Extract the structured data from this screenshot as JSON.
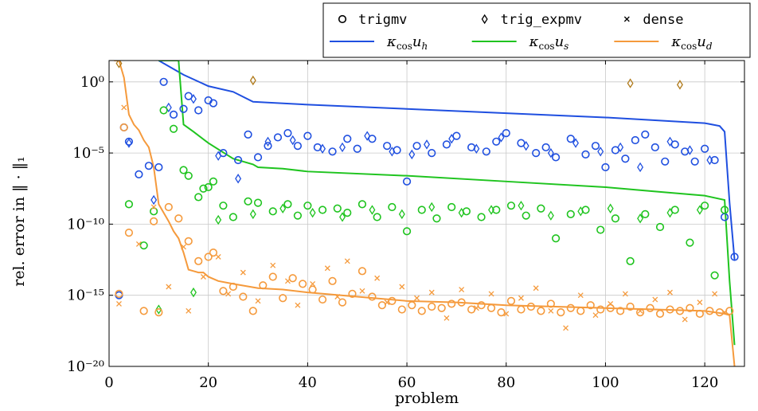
{
  "chart_data": {
    "type": "scatter",
    "xlabel": "problem",
    "ylabel": "rel. error in ‖ · ‖₁",
    "xlim": [
      0,
      128
    ],
    "ylim_log10": [
      -20,
      1.5
    ],
    "y_scale": "log",
    "x_ticks": [
      0,
      20,
      40,
      60,
      80,
      100,
      120
    ],
    "y_ticks": [
      {
        "exp": 0,
        "label": "10⁰"
      },
      {
        "exp": -5,
        "label": "10⁻⁵"
      },
      {
        "exp": -10,
        "label": "10⁻¹⁰"
      },
      {
        "exp": -15,
        "label": "10⁻¹⁵"
      },
      {
        "exp": -20,
        "label": "10⁻²⁰"
      }
    ],
    "grid": true,
    "legend_position": "top-right, above plot",
    "colors": {
      "blue": "#1f4fe0",
      "green": "#1fc41f",
      "orange": "#f59a3c",
      "dark_orange": "#b07a1a"
    },
    "legend": {
      "markers": [
        {
          "name": "trigmv",
          "marker": "circle"
        },
        {
          "name": "trig_expmv",
          "marker": "diamond"
        },
        {
          "name": "dense",
          "marker": "x"
        }
      ],
      "lines": [
        {
          "name": "κcos uh",
          "sub": "h",
          "color": "#1f4fe0"
        },
        {
          "name": "κcos us",
          "sub": "s",
          "color": "#1fc41f"
        },
        {
          "name": "κcos ud",
          "sub": "d",
          "color": "#f59a3c"
        }
      ]
    },
    "series": [
      {
        "name": "κcos uh",
        "kind": "line",
        "color": "#1f4fe0",
        "x": [
          10,
          15,
          20,
          25,
          29,
          40,
          60,
          80,
          100,
          110,
          120,
          123,
          124,
          125,
          126
        ],
        "y_log10": [
          1.5,
          0.5,
          -0.3,
          -0.7,
          -1.4,
          -1.6,
          -1.9,
          -2.2,
          -2.5,
          -2.7,
          -2.9,
          -3.1,
          -3.5,
          -8.5,
          -12.5
        ]
      },
      {
        "name": "κcos us",
        "kind": "line",
        "color": "#1fc41f",
        "x": [
          10,
          14,
          15,
          17,
          20,
          25,
          29,
          30,
          35,
          40,
          60,
          80,
          100,
          110,
          120,
          124,
          125,
          126
        ],
        "y_log10": [
          1.5,
          1.5,
          -3.0,
          -3.5,
          -4.3,
          -5.4,
          -5.8,
          -6.0,
          -6.1,
          -6.3,
          -6.6,
          -7.0,
          -7.4,
          -7.7,
          -8.0,
          -8.3,
          -14.0,
          -18.5
        ]
      },
      {
        "name": "κcos ud",
        "kind": "line",
        "color": "#f59a3c",
        "x": [
          1,
          2,
          3,
          4,
          5,
          6,
          7,
          8,
          9,
          10,
          11,
          12,
          13,
          14,
          15,
          16,
          17,
          18,
          19,
          20,
          22,
          25,
          30,
          35,
          40,
          50,
          60,
          70,
          80,
          90,
          100,
          110,
          120,
          124,
          125,
          126
        ],
        "y_log10": [
          1.5,
          1.5,
          0.3,
          -2.3,
          -3.0,
          -3.4,
          -4.1,
          -4.6,
          -6.0,
          -8.6,
          -9.2,
          -9.8,
          -10.5,
          -11.0,
          -12.0,
          -13.2,
          -13.3,
          -13.4,
          -13.4,
          -13.7,
          -14.0,
          -14.2,
          -14.5,
          -14.6,
          -14.8,
          -15.1,
          -15.4,
          -15.5,
          -15.7,
          -15.8,
          -15.9,
          -16.0,
          -16.1,
          -16.3,
          -16.4,
          -20.0
        ]
      },
      {
        "name": "trigmv",
        "kind": "scatter",
        "marker": "circle",
        "color": "#1f4fe0",
        "x": [
          2,
          3,
          4,
          6,
          8,
          10,
          11,
          13,
          15,
          16,
          18,
          20,
          21,
          23,
          26,
          28,
          30,
          32,
          34,
          36,
          38,
          40,
          42,
          45,
          48,
          50,
          53,
          56,
          58,
          60,
          62,
          65,
          68,
          70,
          73,
          76,
          78,
          80,
          83,
          86,
          88,
          90,
          93,
          96,
          98,
          100,
          102,
          104,
          106,
          108,
          110,
          112,
          114,
          116,
          118,
          120,
          122,
          124,
          126
        ],
        "y_log10": [
          -15.0,
          -3.2,
          -4.2,
          -6.5,
          -5.9,
          -6.0,
          0.0,
          -2.3,
          -1.9,
          -1.0,
          -2.0,
          -1.3,
          -1.5,
          -5.0,
          -5.5,
          -3.7,
          -5.3,
          -4.5,
          -3.9,
          -3.6,
          -4.5,
          -3.8,
          -4.6,
          -4.9,
          -4.0,
          -4.7,
          -4.0,
          -4.5,
          -4.8,
          -7.0,
          -4.5,
          -5.0,
          -4.4,
          -3.8,
          -4.6,
          -4.9,
          -4.2,
          -3.6,
          -4.3,
          -5.0,
          -4.6,
          -5.3,
          -4.0,
          -5.1,
          -4.5,
          -6.0,
          -4.8,
          -5.4,
          -4.1,
          -3.7,
          -4.6,
          -5.6,
          -4.4,
          -4.9,
          -5.6,
          -4.7,
          -5.5,
          -9.5,
          -12.3
        ]
      },
      {
        "name": "trig_expmv",
        "kind": "scatter",
        "marker": "diamond",
        "color": "#1f4fe0",
        "x": [
          4,
          9,
          12,
          17,
          22,
          26,
          32,
          37,
          43,
          47,
          52,
          57,
          61,
          64,
          69,
          74,
          79,
          84,
          89,
          94,
          99,
          103,
          107,
          113,
          117,
          121
        ],
        "y_log10": [
          -4.3,
          -8.3,
          -1.8,
          -1.2,
          -5.2,
          -6.8,
          -4.2,
          -4.1,
          -4.7,
          -4.6,
          -3.8,
          -4.9,
          -5.1,
          -4.4,
          -4.0,
          -4.7,
          -3.9,
          -4.5,
          -5.0,
          -4.3,
          -4.9,
          -4.6,
          -6.0,
          -4.2,
          -4.8,
          -5.5
        ]
      },
      {
        "name": "trigmv green",
        "kind": "scatter",
        "marker": "circle",
        "color": "#1fc41f",
        "x": [
          4,
          7,
          9,
          11,
          13,
          15,
          16,
          18,
          19,
          20,
          21,
          23,
          25,
          28,
          30,
          33,
          36,
          38,
          40,
          43,
          46,
          48,
          51,
          54,
          57,
          60,
          63,
          66,
          69,
          72,
          75,
          78,
          81,
          84,
          87,
          90,
          93,
          96,
          99,
          102,
          105,
          108,
          111,
          114,
          117,
          120,
          122,
          124
        ],
        "y_log10": [
          -8.6,
          -11.5,
          -9.1,
          -2.0,
          -3.3,
          -6.2,
          -6.6,
          -8.1,
          -7.5,
          -7.4,
          -7.0,
          -8.7,
          -9.5,
          -8.4,
          -8.5,
          -9.1,
          -8.6,
          -9.4,
          -8.7,
          -9.0,
          -8.9,
          -9.2,
          -8.6,
          -9.5,
          -8.8,
          -10.5,
          -9.0,
          -9.6,
          -8.8,
          -9.1,
          -9.5,
          -9.0,
          -8.7,
          -9.4,
          -8.9,
          -11.0,
          -9.3,
          -9.0,
          -10.4,
          -9.6,
          -12.6,
          -9.3,
          -10.2,
          -9.0,
          -11.3,
          -8.7,
          -13.6,
          -9.0
        ]
      },
      {
        "name": "trig_expmv green",
        "kind": "scatter",
        "marker": "diamond",
        "color": "#1fc41f",
        "x": [
          10,
          17,
          22,
          29,
          35,
          41,
          47,
          53,
          59,
          65,
          71,
          77,
          83,
          89,
          95,
          101,
          107,
          113,
          119
        ],
        "y_log10": [
          -16.0,
          -14.8,
          -9.7,
          -9.3,
          -8.9,
          -9.2,
          -9.5,
          -9.0,
          -9.3,
          -8.8,
          -9.2,
          -9.0,
          -8.7,
          -9.4,
          -9.1,
          -8.9,
          -9.6,
          -9.2,
          -9.0
        ]
      },
      {
        "name": "trigmv orange",
        "kind": "scatter",
        "marker": "circle",
        "color": "#f59a3c",
        "x": [
          2,
          3,
          4,
          7,
          9,
          10,
          12,
          14,
          16,
          18,
          20,
          21,
          23,
          25,
          27,
          29,
          31,
          33,
          35,
          37,
          39,
          41,
          43,
          45,
          47,
          49,
          51,
          53,
          55,
          57,
          59,
          61,
          63,
          65,
          67,
          69,
          71,
          73,
          75,
          77,
          79,
          81,
          83,
          85,
          87,
          89,
          91,
          93,
          95,
          97,
          99,
          101,
          103,
          105,
          107,
          109,
          111,
          113,
          115,
          117,
          119,
          121,
          123,
          125
        ],
        "y_log10": [
          -14.9,
          -3.2,
          -10.6,
          -16.1,
          -9.8,
          -16.2,
          -8.8,
          -9.6,
          -11.2,
          -12.6,
          -12.3,
          -12.0,
          -14.7,
          -14.4,
          -15.1,
          -16.1,
          -14.3,
          -13.7,
          -15.2,
          -13.8,
          -14.2,
          -14.6,
          -15.3,
          -14.0,
          -15.5,
          -14.9,
          -13.3,
          -15.1,
          -15.7,
          -15.4,
          -16.0,
          -15.7,
          -16.1,
          -15.8,
          -15.9,
          -15.6,
          -15.5,
          -16.0,
          -15.7,
          -15.9,
          -16.2,
          -15.4,
          -16.0,
          -15.8,
          -16.1,
          -15.6,
          -16.2,
          -15.9,
          -16.1,
          -15.7,
          -16.0,
          -15.9,
          -16.1,
          -15.8,
          -16.2,
          -15.9,
          -16.3,
          -16.0,
          -16.1,
          -15.9,
          -16.3,
          -16.1,
          -16.2,
          -16.1
        ]
      },
      {
        "name": "trig_expmv orange",
        "kind": "scatter",
        "marker": "diamond",
        "color": "#b07a1a",
        "x": [
          2,
          29,
          105,
          115
        ],
        "y_log10": [
          1.3,
          0.1,
          -0.1,
          -0.2
        ]
      },
      {
        "name": "dense",
        "kind": "scatter",
        "marker": "x",
        "color": "#f59a3c",
        "x": [
          2,
          3,
          6,
          9,
          12,
          15,
          16,
          19,
          22,
          24,
          27,
          30,
          33,
          36,
          38,
          41,
          44,
          46,
          48,
          51,
          54,
          56,
          59,
          62,
          65,
          68,
          71,
          74,
          77,
          80,
          83,
          86,
          89,
          92,
          95,
          98,
          101,
          104,
          107,
          110,
          113,
          116,
          119,
          122,
          124
        ],
        "y_log10": [
          -15.6,
          -1.8,
          -11.4,
          -8.8,
          -14.4,
          -11.6,
          -16.1,
          -13.7,
          -12.3,
          -14.9,
          -13.4,
          -15.4,
          -12.9,
          -14.0,
          -15.7,
          -14.2,
          -13.1,
          -15.1,
          -12.6,
          -14.7,
          -13.8,
          -15.5,
          -14.4,
          -15.2,
          -14.8,
          -16.6,
          -14.6,
          -15.9,
          -14.9,
          -16.3,
          -15.2,
          -14.5,
          -16.1,
          -17.3,
          -15.0,
          -16.4,
          -15.6,
          -14.9,
          -16.1,
          -15.3,
          -14.8,
          -16.7,
          -15.5,
          -14.9,
          -16.2
        ]
      }
    ]
  }
}
